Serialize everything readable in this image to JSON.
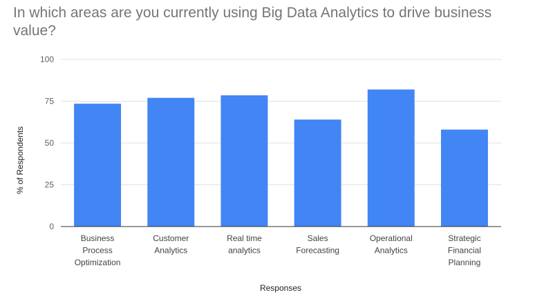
{
  "chart_data": {
    "type": "bar",
    "title": "In which areas are you currently using Big Data Analytics to drive business value?",
    "xlabel": "Responses",
    "ylabel": "% of Respondents",
    "ylim": [
      0,
      100
    ],
    "yticks": [
      0,
      25,
      50,
      75,
      100
    ],
    "grid": true,
    "categories": [
      [
        "Business",
        "Process",
        "Optimization"
      ],
      [
        "Customer",
        "Analytics"
      ],
      [
        "Real time",
        "analytics"
      ],
      [
        "Sales",
        "Forecasting"
      ],
      [
        "Operational",
        "Analytics"
      ],
      [
        "Strategic",
        "Financial",
        "Planning"
      ]
    ],
    "series": [
      {
        "values": [
          73.5,
          77,
          78.5,
          64,
          82,
          58
        ]
      }
    ],
    "bar_color": "#4285f4",
    "grid_color": "#e0e0e0",
    "axis_color": "#333333"
  }
}
